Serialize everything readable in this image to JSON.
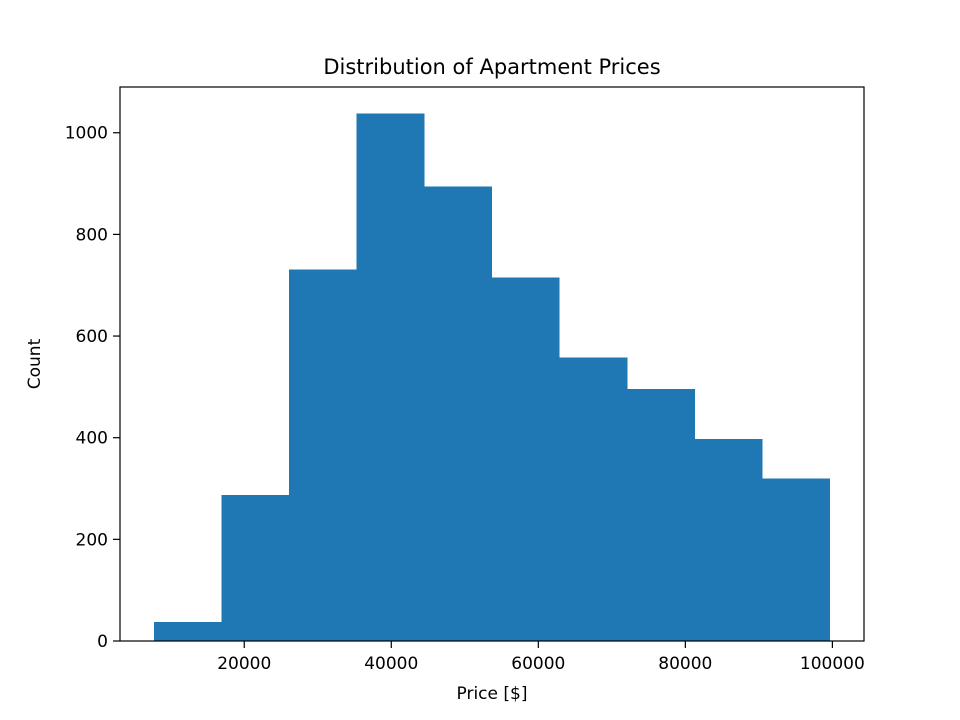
{
  "chart_data": {
    "type": "bar",
    "title": "Distribution of Apartment Prices",
    "xlabel": "Price [$]",
    "ylabel": "Count",
    "bins": [
      {
        "start": 7700,
        "end": 16900,
        "count": 37
      },
      {
        "start": 16900,
        "end": 26100,
        "count": 287
      },
      {
        "start": 26100,
        "end": 35300,
        "count": 731
      },
      {
        "start": 35300,
        "end": 44500,
        "count": 1038
      },
      {
        "start": 44500,
        "end": 53700,
        "count": 894
      },
      {
        "start": 53700,
        "end": 62900,
        "count": 715
      },
      {
        "start": 62900,
        "end": 72100,
        "count": 558
      },
      {
        "start": 72100,
        "end": 81300,
        "count": 496
      },
      {
        "start": 81300,
        "end": 90500,
        "count": 397
      },
      {
        "start": 90500,
        "end": 99700,
        "count": 320
      }
    ],
    "xlim": [
      3100,
      104300
    ],
    "ylim": [
      0,
      1090
    ],
    "xticks": [
      20000,
      40000,
      60000,
      80000,
      100000
    ],
    "yticks": [
      0,
      200,
      400,
      600,
      800,
      1000
    ],
    "bar_color": "#1f77b4",
    "grid": false,
    "legend": "none"
  }
}
